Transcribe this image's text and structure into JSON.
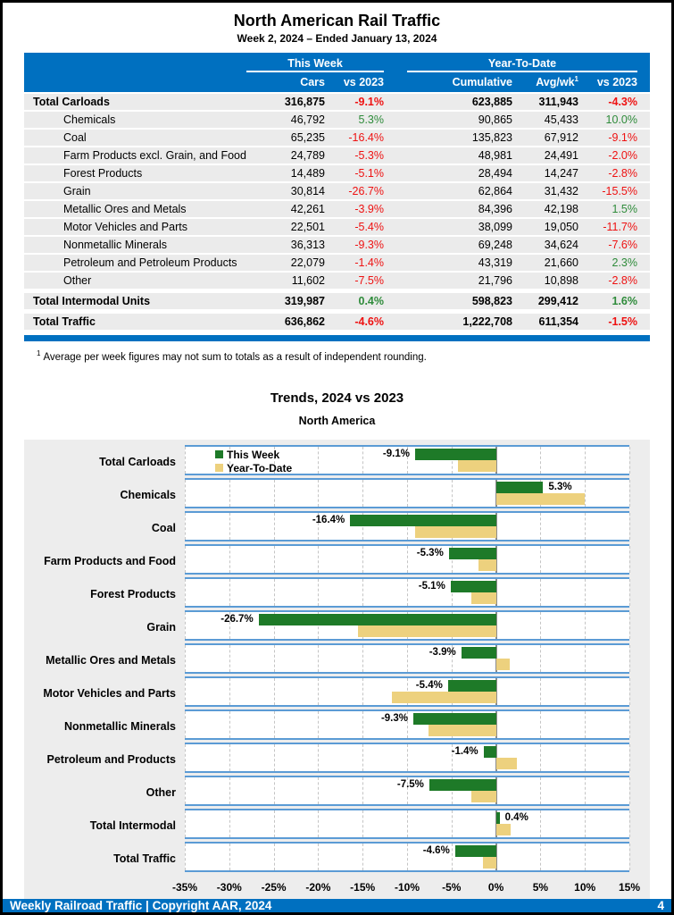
{
  "page": {
    "title": "North American Rail Traffic",
    "subtitle": "Week 2, 2024 – Ended January 13, 2024",
    "footnote_marker": "1",
    "footnote": "Average per week figures may not sum to totals as a result of independent rounding.",
    "footer": {
      "left": "Weekly Railroad Traffic | Copyright AAR, 2024",
      "page_number": "4"
    }
  },
  "colors": {
    "blue": "#0070C0",
    "line_blue": "#5B9BD5",
    "row_gray": "#EBEBEB",
    "panel_gray": "#EDEDED",
    "bar_green": "#1E7A28",
    "bar_tan": "#EDD17E",
    "neg_red": "#EE1111",
    "pos_green": "#2E8B3A",
    "grid_dash": "#C4C4C4",
    "zero_line": "#8C8C8C"
  },
  "table": {
    "group_this_week": "This Week",
    "group_ytd": "Year-To-Date",
    "columns": [
      "Cars",
      "vs 2023",
      "Cumulative",
      "Avg/wk",
      "vs 2023"
    ],
    "avgwk_sup": "1",
    "rows": [
      {
        "label": "Total Carloads",
        "style": "total",
        "cars": "316,875",
        "vs_tw": "-9.1%",
        "cumulative": "623,885",
        "avg_wk": "311,943",
        "vs_ytd": "-4.3%"
      },
      {
        "label": "Chemicals",
        "style": "sub",
        "cars": "46,792",
        "vs_tw": "5.3%",
        "cumulative": "90,865",
        "avg_wk": "45,433",
        "vs_ytd": "10.0%"
      },
      {
        "label": "Coal",
        "style": "sub",
        "cars": "65,235",
        "vs_tw": "-16.4%",
        "cumulative": "135,823",
        "avg_wk": "67,912",
        "vs_ytd": "-9.1%"
      },
      {
        "label": "Farm Products excl. Grain, and Food",
        "style": "sub",
        "cars": "24,789",
        "vs_tw": "-5.3%",
        "cumulative": "48,981",
        "avg_wk": "24,491",
        "vs_ytd": "-2.0%"
      },
      {
        "label": "Forest Products",
        "style": "sub",
        "cars": "14,489",
        "vs_tw": "-5.1%",
        "cumulative": "28,494",
        "avg_wk": "14,247",
        "vs_ytd": "-2.8%"
      },
      {
        "label": "Grain",
        "style": "sub",
        "cars": "30,814",
        "vs_tw": "-26.7%",
        "cumulative": "62,864",
        "avg_wk": "31,432",
        "vs_ytd": "-15.5%"
      },
      {
        "label": "Metallic Ores and Metals",
        "style": "sub",
        "cars": "42,261",
        "vs_tw": "-3.9%",
        "cumulative": "84,396",
        "avg_wk": "42,198",
        "vs_ytd": "1.5%"
      },
      {
        "label": "Motor Vehicles and Parts",
        "style": "sub",
        "cars": "22,501",
        "vs_tw": "-5.4%",
        "cumulative": "38,099",
        "avg_wk": "19,050",
        "vs_ytd": "-11.7%"
      },
      {
        "label": "Nonmetallic Minerals",
        "style": "sub",
        "cars": "36,313",
        "vs_tw": "-9.3%",
        "cumulative": "69,248",
        "avg_wk": "34,624",
        "vs_ytd": "-7.6%"
      },
      {
        "label": "Petroleum and Petroleum Products",
        "style": "sub",
        "cars": "22,079",
        "vs_tw": "-1.4%",
        "cumulative": "43,319",
        "avg_wk": "21,660",
        "vs_ytd": "2.3%"
      },
      {
        "label": "Other",
        "style": "sub",
        "cars": "11,602",
        "vs_tw": "-7.5%",
        "cumulative": "21,796",
        "avg_wk": "10,898",
        "vs_ytd": "-2.8%"
      },
      {
        "label": "Total Intermodal Units",
        "style": "total gap",
        "cars": "319,987",
        "vs_tw": "0.4%",
        "cumulative": "598,823",
        "avg_wk": "299,412",
        "vs_ytd": "1.6%"
      },
      {
        "label": "Total Traffic",
        "style": "total gap",
        "cars": "636,862",
        "vs_tw": "-4.6%",
        "cumulative": "1,222,708",
        "avg_wk": "611,354",
        "vs_ytd": "-1.5%"
      }
    ]
  },
  "chart_data": {
    "type": "bar",
    "orientation": "horizontal",
    "title": "Trends, 2024 vs 2023",
    "subtitle": "North America",
    "categories": [
      "Total Carloads",
      "Chemicals",
      "Coal",
      "Farm Products and Food",
      "Forest Products",
      "Grain",
      "Metallic Ores and Metals",
      "Motor Vehicles and Parts",
      "Nonmetallic Minerals",
      "Petroleum and Products",
      "Other",
      "Total Intermodal",
      "Total Traffic"
    ],
    "series": [
      {
        "name": "This Week",
        "color": "#1E7A28",
        "values": [
          -9.1,
          5.3,
          -16.4,
          -5.3,
          -5.1,
          -26.7,
          -3.9,
          -5.4,
          -9.3,
          -1.4,
          -7.5,
          0.4,
          -4.6
        ]
      },
      {
        "name": "Year-To-Date",
        "color": "#EDD17E",
        "values": [
          -4.3,
          10.0,
          -9.1,
          -2.0,
          -2.8,
          -15.5,
          1.5,
          -11.7,
          -7.6,
          2.3,
          -2.8,
          1.6,
          -1.5
        ]
      }
    ],
    "data_labels": [
      "-9.1%",
      "5.3%",
      "-16.4%",
      "-5.3%",
      "-5.1%",
      "-26.7%",
      "-3.9%",
      "-5.4%",
      "-9.3%",
      "-1.4%",
      "-7.5%",
      "0.4%",
      "-4.6%"
    ],
    "data_labels_series": "This Week",
    "xlim": [
      -35,
      15
    ],
    "x_ticks": [
      "-35%",
      "-30%",
      "-25%",
      "-20%",
      "-15%",
      "-10%",
      "-5%",
      "0%",
      "5%",
      "10%",
      "15%"
    ],
    "grid": "dashed vertical at 5% steps",
    "legend_position": "inside top-left"
  }
}
